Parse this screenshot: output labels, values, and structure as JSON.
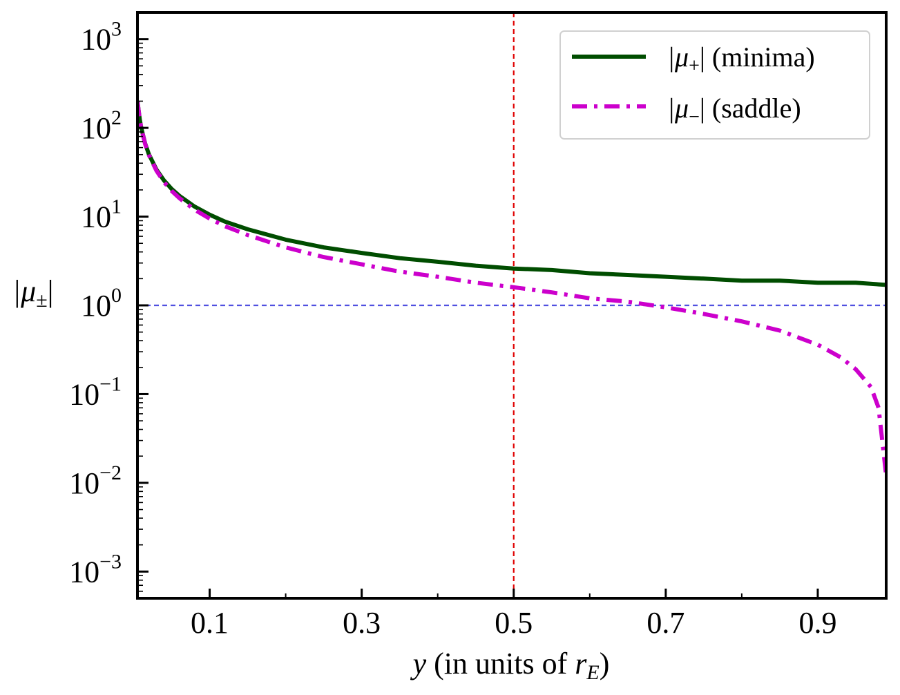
{
  "chart_data": {
    "type": "line",
    "xscale": "linear",
    "yscale": "log",
    "xlim": [
      0.005,
      0.99
    ],
    "ylim": [
      0.0005,
      2000
    ],
    "xticks": [
      0.1,
      0.3,
      0.5,
      0.7,
      0.9
    ],
    "xtick_labels": [
      "0.1",
      "0.3",
      "0.5",
      "0.7",
      "0.9"
    ],
    "yticks": [
      {
        "value": 1000,
        "base": "10",
        "exp": "3"
      },
      {
        "value": 100,
        "base": "10",
        "exp": "2"
      },
      {
        "value": 10,
        "base": "10",
        "exp": "1"
      },
      {
        "value": 1,
        "base": "10",
        "exp": "0"
      },
      {
        "value": 0.1,
        "base": "10",
        "exp": "−1"
      },
      {
        "value": 0.01,
        "base": "10",
        "exp": "−2"
      },
      {
        "value": 0.001,
        "base": "10",
        "exp": "−3"
      }
    ],
    "xlabel": {
      "var": "y",
      "middle": " (in units of ",
      "r": "r",
      "sub": "E",
      "end": ")"
    },
    "ylabel": {
      "mu": "|μ",
      "sub": "±",
      "end": "|"
    },
    "reference_lines": [
      {
        "orientation": "horizontal",
        "value": 1,
        "color": "#5050e0",
        "style": "dashed"
      },
      {
        "orientation": "vertical",
        "value": 0.5,
        "color": "#e00000",
        "style": "dashed"
      }
    ],
    "series": [
      {
        "name": "|μ+| (minima)",
        "legend": {
          "mu": "|μ",
          "sub": "+",
          "rest": "| (minima)"
        },
        "color": "#004d00",
        "style": "solid",
        "x": [
          0.005,
          0.008,
          0.01,
          0.015,
          0.02,
          0.03,
          0.04,
          0.05,
          0.06,
          0.08,
          0.1,
          0.12,
          0.15,
          0.2,
          0.25,
          0.3,
          0.35,
          0.4,
          0.45,
          0.5,
          0.55,
          0.6,
          0.65,
          0.7,
          0.75,
          0.8,
          0.85,
          0.9,
          0.95,
          0.99
        ],
        "y": [
          200.5,
          125.5,
          100.5,
          67.2,
          50.5,
          33.9,
          25.5,
          20.5,
          17.2,
          13.0,
          10.5,
          8.8,
          7.2,
          5.5,
          4.5,
          3.9,
          3.4,
          3.1,
          2.8,
          2.6,
          2.5,
          2.3,
          2.2,
          2.1,
          2.0,
          1.9,
          1.9,
          1.8,
          1.8,
          1.7
        ]
      },
      {
        "name": "|μ−| (saddle)",
        "legend": {
          "mu": "|μ",
          "sub": "−",
          "rest": "| (saddle)"
        },
        "color": "#cc00cc",
        "style": "dashdot",
        "x": [
          0.005,
          0.008,
          0.01,
          0.015,
          0.02,
          0.03,
          0.04,
          0.05,
          0.06,
          0.08,
          0.1,
          0.12,
          0.15,
          0.2,
          0.25,
          0.3,
          0.35,
          0.4,
          0.45,
          0.5,
          0.55,
          0.6,
          0.65,
          0.7,
          0.75,
          0.8,
          0.85,
          0.9,
          0.93,
          0.95,
          0.97,
          0.98,
          0.99
        ],
        "y": [
          199.5,
          124.5,
          99.5,
          66.2,
          49.5,
          32.9,
          24.5,
          19.5,
          16.2,
          12.0,
          9.5,
          7.8,
          6.2,
          4.5,
          3.5,
          2.9,
          2.4,
          2.1,
          1.8,
          1.6,
          1.4,
          1.2,
          1.1,
          0.95,
          0.8,
          0.66,
          0.52,
          0.36,
          0.26,
          0.19,
          0.12,
          0.07,
          0.012
        ]
      }
    ]
  }
}
